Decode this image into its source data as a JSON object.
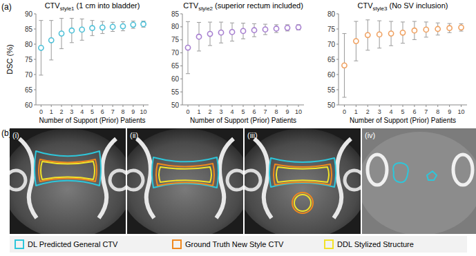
{
  "chart_data": [
    {
      "type": "scatter",
      "title": "CTVstyle1 (1 cm into bladder)",
      "x_label": "Number of Support (Prior) Patients",
      "y_label": "DSC (%)",
      "x": [
        0,
        1,
        2,
        3,
        4,
        5,
        6,
        7,
        8,
        9,
        10
      ],
      "values": [
        78.8,
        81.3,
        83.5,
        84.5,
        84.8,
        85.3,
        85.5,
        85.7,
        85.9,
        86.4,
        86.6
      ],
      "errors": [
        9,
        6.5,
        5,
        4,
        3.5,
        2.5,
        2,
        1.5,
        1.5,
        1.2,
        1
      ],
      "color": "#4fc1d8",
      "marker": "circle",
      "xlim": [
        -0.5,
        10.5
      ],
      "xticks": [
        0,
        1,
        2,
        3,
        4,
        5,
        6,
        7,
        8,
        9,
        10
      ],
      "ylim": [
        60,
        90
      ],
      "yticks": [
        60,
        65,
        70,
        75,
        80,
        85,
        90
      ],
      "grid": false
    },
    {
      "type": "scatter",
      "title": "CTVstyle2 (superior rectum included)",
      "x_label": "Number of Support (Prior) Patients",
      "x": [
        0,
        1,
        2,
        3,
        4,
        5,
        6,
        7,
        8,
        9,
        10
      ],
      "values": [
        72,
        76.2,
        77.3,
        77.8,
        78,
        78.4,
        78.7,
        79,
        79.3,
        79.6,
        79.8
      ],
      "errors": [
        10,
        5.5,
        4.5,
        4,
        3.5,
        3,
        2.5,
        2,
        1.5,
        1.2,
        1
      ],
      "color": "#a77fd0",
      "marker": "circle",
      "xlim": [
        -0.5,
        10.5
      ],
      "xticks": [
        0,
        1,
        2,
        3,
        4,
        5,
        6,
        7,
        8,
        9,
        10
      ],
      "ylim": [
        50,
        85
      ],
      "yticks": [
        50,
        55,
        60,
        65,
        70,
        75,
        80,
        85
      ],
      "grid": false
    },
    {
      "type": "scatter",
      "title": "CTVstyle3 (No SV inclusion)",
      "x_label": "Number of Support (Prior) Patients",
      "x": [
        0,
        1,
        2,
        3,
        4,
        5,
        6,
        7,
        8,
        9,
        10
      ],
      "values": [
        63,
        71,
        73,
        73.2,
        73.5,
        73.8,
        74.5,
        74.8,
        75,
        75.3,
        75.5
      ],
      "errors": [
        10.5,
        6.5,
        5,
        4.5,
        4,
        3.5,
        3,
        2.5,
        2,
        1.5,
        1.2
      ],
      "color": "#f0a262",
      "marker": "circle",
      "xlim": [
        -0.5,
        10.5
      ],
      "xticks": [
        0,
        1,
        2,
        3,
        4,
        5,
        6,
        7,
        8,
        9,
        10
      ],
      "ylim": [
        50,
        80
      ],
      "yticks": [
        50,
        55,
        60,
        65,
        70,
        75,
        80
      ],
      "grid": false
    }
  ],
  "figure": {
    "panel_a": "(a)",
    "panel_b": "(b)",
    "images": [
      "(i)",
      "(ii)",
      "(iii)",
      "(iv)"
    ],
    "legend": [
      {
        "label": "DL Predicted General CTV",
        "color": "#2ec6da"
      },
      {
        "label": "Ground Truth New Style CTV",
        "color": "#f0881e"
      },
      {
        "label": "DDL Stylized Structure",
        "color": "#f2e229"
      }
    ]
  }
}
